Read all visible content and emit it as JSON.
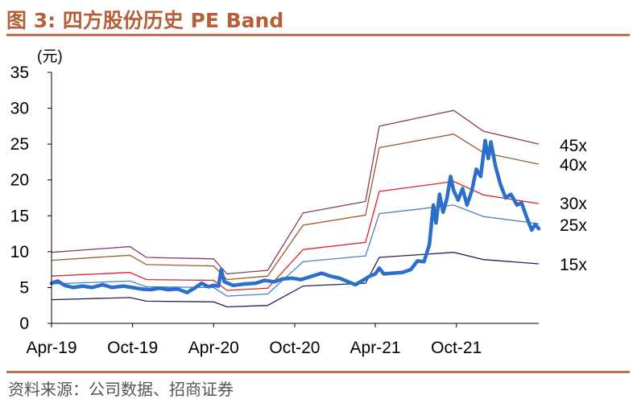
{
  "figure": {
    "title": "图 3:  四方股份历史 PE Band",
    "source": "资料来源：公司数据、招商证券"
  },
  "chart_data": {
    "type": "line",
    "unit_label": "(元)",
    "ylim": [
      0,
      35
    ],
    "yticks": [
      "0",
      "5",
      "10",
      "15",
      "20",
      "25",
      "30",
      "35"
    ],
    "xlim": [
      "2019-04-01",
      "2022-04-05"
    ],
    "xticks": [
      {
        "date": "2019-04-01",
        "label": "Apr-19"
      },
      {
        "date": "2019-10-01",
        "label": "Oct-19"
      },
      {
        "date": "2020-04-01",
        "label": "Apr-20"
      },
      {
        "date": "2020-10-01",
        "label": "Oct-20"
      },
      {
        "date": "2021-04-01",
        "label": "Apr-21"
      },
      {
        "date": "2021-10-01",
        "label": "Oct-21"
      }
    ],
    "grid": false,
    "bands": [
      {
        "label": "45x",
        "color": "#8b3a5a",
        "points": [
          [
            "2019-04-01",
            9.9
          ],
          [
            "2019-09-25",
            10.7
          ],
          [
            "2019-11-01",
            9.2
          ],
          [
            "2020-04-01",
            9.0
          ],
          [
            "2020-05-01",
            6.9
          ],
          [
            "2020-08-01",
            7.4
          ],
          [
            "2020-10-20",
            15.4
          ],
          [
            "2021-03-10",
            17.0
          ],
          [
            "2021-04-10",
            27.5
          ],
          [
            "2021-09-25",
            29.7
          ],
          [
            "2021-12-01",
            26.8
          ],
          [
            "2022-04-05",
            25.0
          ]
        ]
      },
      {
        "label": "40x",
        "color": "#9a5a2a",
        "points": [
          [
            "2019-04-01",
            8.8
          ],
          [
            "2019-09-25",
            9.5
          ],
          [
            "2019-11-01",
            8.2
          ],
          [
            "2020-04-01",
            8.0
          ],
          [
            "2020-05-01",
            6.1
          ],
          [
            "2020-08-01",
            6.6
          ],
          [
            "2020-10-20",
            13.7
          ],
          [
            "2021-03-10",
            15.1
          ],
          [
            "2021-04-10",
            24.5
          ],
          [
            "2021-09-25",
            26.4
          ],
          [
            "2021-12-01",
            23.8
          ],
          [
            "2022-04-05",
            22.2
          ]
        ]
      },
      {
        "label": "30x",
        "color": "#e02020",
        "points": [
          [
            "2019-04-01",
            6.6
          ],
          [
            "2019-09-25",
            7.1
          ],
          [
            "2019-11-01",
            6.1
          ],
          [
            "2020-04-01",
            6.0
          ],
          [
            "2020-05-01",
            4.6
          ],
          [
            "2020-08-01",
            4.9
          ],
          [
            "2020-10-20",
            10.3
          ],
          [
            "2021-03-10",
            11.3
          ],
          [
            "2021-04-10",
            18.4
          ],
          [
            "2021-09-25",
            19.8
          ],
          [
            "2021-12-01",
            17.9
          ],
          [
            "2022-04-05",
            16.7
          ]
        ]
      },
      {
        "label": "25x",
        "color": "#4a7fd0",
        "points": [
          [
            "2019-04-01",
            5.5
          ],
          [
            "2019-09-25",
            5.9
          ],
          [
            "2019-11-01",
            5.1
          ],
          [
            "2020-04-01",
            5.0
          ],
          [
            "2020-05-01",
            3.8
          ],
          [
            "2020-08-01",
            4.1
          ],
          [
            "2020-10-20",
            8.6
          ],
          [
            "2021-03-10",
            9.4
          ],
          [
            "2021-04-10",
            15.3
          ],
          [
            "2021-09-25",
            16.5
          ],
          [
            "2021-12-01",
            14.9
          ],
          [
            "2022-04-05",
            13.9
          ]
        ]
      },
      {
        "label": "15x",
        "color": "#1f2060",
        "points": [
          [
            "2019-04-01",
            3.3
          ],
          [
            "2019-09-25",
            3.6
          ],
          [
            "2019-11-01",
            3.1
          ],
          [
            "2020-04-01",
            3.0
          ],
          [
            "2020-05-01",
            2.3
          ],
          [
            "2020-08-01",
            2.5
          ],
          [
            "2020-10-20",
            5.2
          ],
          [
            "2021-03-10",
            5.6
          ],
          [
            "2021-04-10",
            9.2
          ],
          [
            "2021-09-25",
            9.9
          ],
          [
            "2021-12-01",
            8.9
          ],
          [
            "2022-04-05",
            8.3
          ]
        ]
      }
    ],
    "price": {
      "color": "#2a6fc9",
      "points": [
        [
          "2019-04-01",
          5.6
        ],
        [
          "2019-04-15",
          5.9
        ],
        [
          "2019-05-01",
          5.3
        ],
        [
          "2019-05-20",
          5.0
        ],
        [
          "2019-06-10",
          5.2
        ],
        [
          "2019-07-01",
          5.0
        ],
        [
          "2019-07-25",
          5.4
        ],
        [
          "2019-08-15",
          5.0
        ],
        [
          "2019-09-10",
          5.2
        ],
        [
          "2019-09-30",
          5.0
        ],
        [
          "2019-10-20",
          4.8
        ],
        [
          "2019-11-10",
          4.7
        ],
        [
          "2019-12-01",
          4.9
        ],
        [
          "2019-12-20",
          4.7
        ],
        [
          "2020-01-10",
          4.8
        ],
        [
          "2020-02-01",
          4.3
        ],
        [
          "2020-02-20",
          5.0
        ],
        [
          "2020-03-05",
          5.6
        ],
        [
          "2020-03-20",
          5.1
        ],
        [
          "2020-04-01",
          5.3
        ],
        [
          "2020-04-12",
          5.2
        ],
        [
          "2020-04-18",
          7.5
        ],
        [
          "2020-04-25",
          5.8
        ],
        [
          "2020-05-15",
          5.3
        ],
        [
          "2020-06-10",
          5.5
        ],
        [
          "2020-07-05",
          5.6
        ],
        [
          "2020-07-25",
          6.0
        ],
        [
          "2020-08-15",
          5.8
        ],
        [
          "2020-09-05",
          6.2
        ],
        [
          "2020-09-25",
          6.3
        ],
        [
          "2020-10-15",
          6.1
        ],
        [
          "2020-11-10",
          6.6
        ],
        [
          "2020-12-01",
          7.0
        ],
        [
          "2020-12-20",
          6.6
        ],
        [
          "2021-01-10",
          6.3
        ],
        [
          "2021-01-30",
          5.8
        ],
        [
          "2021-02-15",
          5.4
        ],
        [
          "2021-03-01",
          5.9
        ],
        [
          "2021-03-20",
          6.6
        ],
        [
          "2021-04-01",
          6.9
        ],
        [
          "2021-04-10",
          7.7
        ],
        [
          "2021-04-20",
          6.9
        ],
        [
          "2021-05-10",
          7.0
        ],
        [
          "2021-06-01",
          7.1
        ],
        [
          "2021-06-20",
          7.5
        ],
        [
          "2021-07-05",
          8.7
        ],
        [
          "2021-07-20",
          8.6
        ],
        [
          "2021-08-01",
          11.0
        ],
        [
          "2021-08-10",
          16.5
        ],
        [
          "2021-08-16",
          14.0
        ],
        [
          "2021-08-24",
          18.0
        ],
        [
          "2021-09-01",
          15.5
        ],
        [
          "2021-09-10",
          17.5
        ],
        [
          "2021-09-18",
          20.5
        ],
        [
          "2021-09-25",
          18.5
        ],
        [
          "2021-10-05",
          17.2
        ],
        [
          "2021-10-15",
          18.8
        ],
        [
          "2021-10-25",
          16.5
        ],
        [
          "2021-11-05",
          18.5
        ],
        [
          "2021-11-15",
          21.5
        ],
        [
          "2021-11-25",
          20.5
        ],
        [
          "2021-12-05",
          25.5
        ],
        [
          "2021-12-12",
          23.0
        ],
        [
          "2021-12-18",
          25.3
        ],
        [
          "2021-12-28",
          22.0
        ],
        [
          "2022-01-08",
          19.5
        ],
        [
          "2022-01-20",
          17.5
        ],
        [
          "2022-02-01",
          18.0
        ],
        [
          "2022-02-15",
          16.5
        ],
        [
          "2022-02-25",
          16.8
        ],
        [
          "2022-03-10",
          14.6
        ],
        [
          "2022-03-20",
          13.0
        ],
        [
          "2022-03-28",
          13.8
        ],
        [
          "2022-04-05",
          13.2
        ]
      ]
    }
  }
}
